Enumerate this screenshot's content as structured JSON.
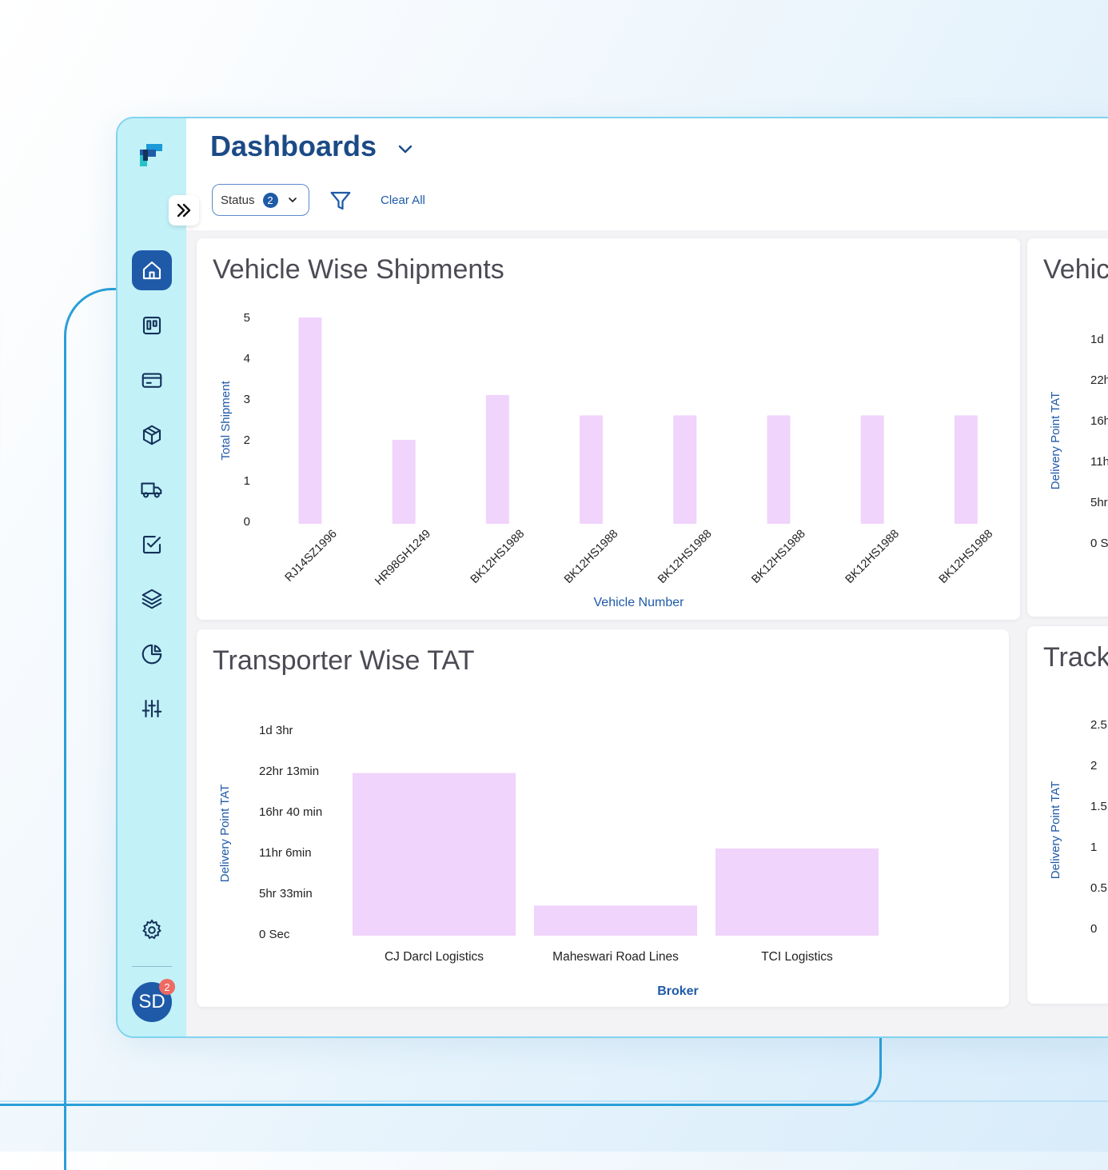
{
  "header": {
    "title": "Dashboards",
    "status_filter": {
      "label": "Status",
      "count": "2"
    },
    "clear_all": "Clear All"
  },
  "sidebar": {
    "items": [
      {
        "name": "home",
        "icon": "home-icon",
        "active": true
      },
      {
        "name": "board",
        "icon": "kanban-icon",
        "active": false
      },
      {
        "name": "payments",
        "icon": "card-icon",
        "active": false
      },
      {
        "name": "shipments",
        "icon": "package-icon",
        "active": false
      },
      {
        "name": "fleet",
        "icon": "truck-icon",
        "active": false
      },
      {
        "name": "tasks",
        "icon": "checkbox-icon",
        "active": false
      },
      {
        "name": "layers",
        "icon": "layers-icon",
        "active": false
      },
      {
        "name": "reports",
        "icon": "pie-chart-icon",
        "active": false
      },
      {
        "name": "controls",
        "icon": "sliders-icon",
        "active": false
      }
    ],
    "avatar": {
      "initials": "SD",
      "badge": "2"
    }
  },
  "colors": {
    "brand": "#1f5aa8",
    "bar": "#f0d4fb",
    "axis_title": "#1f5aa8",
    "sidebar": "#c2f1f8"
  },
  "chart_data": [
    {
      "type": "bar",
      "title": "Vehicle Wise Shipments",
      "xlabel": "Vehicle Number",
      "ylabel": "Total Shipment",
      "yticks": [
        "0",
        "1",
        "2",
        "3",
        "4",
        "5"
      ],
      "ylim": [
        0,
        5
      ],
      "categories": [
        "RJ14SZ1996",
        "HR98GH1249",
        "BK12HS1988",
        "BK12HS1988",
        "BK12HS1988",
        "BK12HS1988",
        "BK12HS1988",
        "BK12HS1988"
      ],
      "values": [
        5,
        2,
        3.1,
        2.6,
        2.6,
        2.6,
        2.6,
        2.6
      ]
    },
    {
      "type": "bar",
      "title": "Transporter Wise TAT",
      "xlabel": "Broker",
      "ylabel": "Delivery Point TAT",
      "yticks": [
        "0 Sec",
        "5hr 33min",
        "11hr 6min",
        "16hr 40 min",
        "22hr 13min",
        "1d 3hr"
      ],
      "ylim": [
        0,
        5
      ],
      "categories": [
        "CJ Darcl Logistics",
        "Maheswari Road Lines",
        "TCI Logistics"
      ],
      "values": [
        3.95,
        0.7,
        2.1
      ]
    },
    {
      "type": "bar",
      "title": "Vehic",
      "ylabel": "Delivery Point TAT",
      "yticks": [
        "0 S",
        "5hr",
        "11h",
        "16h",
        "22h",
        "1d"
      ]
    },
    {
      "type": "bar",
      "title": "Track",
      "ylabel": "Delivery Point TAT",
      "yticks": [
        "0",
        "0.5",
        "1",
        "1.5",
        "2",
        "2.5"
      ]
    }
  ]
}
